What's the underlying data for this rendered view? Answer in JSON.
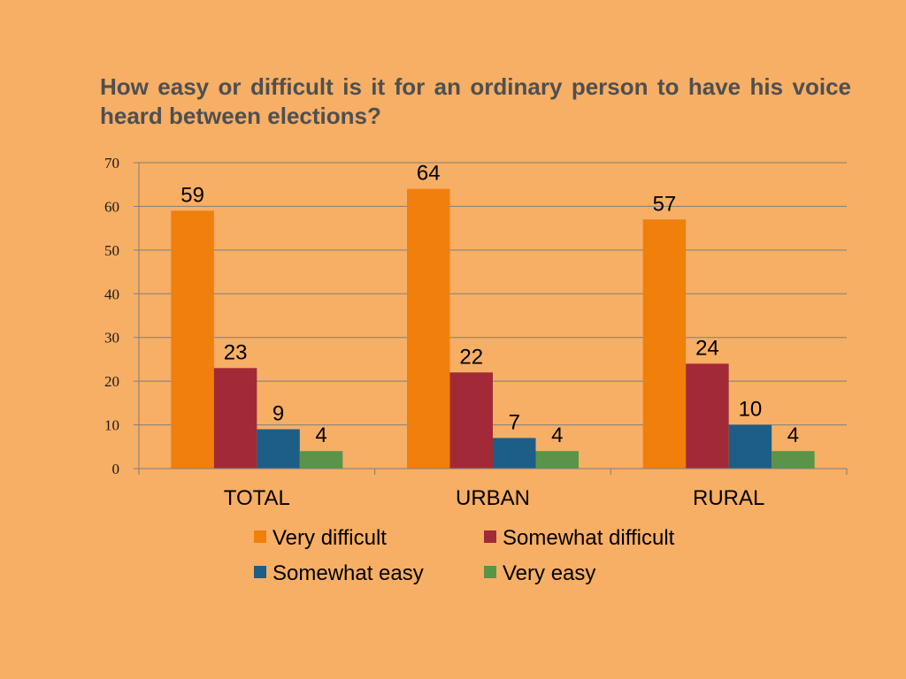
{
  "chart_data": {
    "type": "bar",
    "title": "How easy or difficult is it for an ordinary person to have his voice heard between elections?",
    "categories": [
      "TOTAL",
      "URBAN",
      "RURAL"
    ],
    "series": [
      {
        "name": "Very difficult",
        "color": "#F07F0C",
        "values": [
          59,
          64,
          57
        ]
      },
      {
        "name": "Somewhat difficult",
        "color": "#A22A37",
        "values": [
          23,
          22,
          24
        ]
      },
      {
        "name": "Somewhat easy",
        "color": "#1D5E86",
        "values": [
          9,
          7,
          10
        ]
      },
      {
        "name": "Very easy",
        "color": "#5A9448",
        "values": [
          4,
          4,
          4
        ]
      }
    ],
    "ylim": [
      0,
      70
    ],
    "yticks": [
      0,
      10,
      20,
      30,
      40,
      50,
      60,
      70
    ],
    "xlabel": "",
    "ylabel": "",
    "grid": true,
    "legend": "bottom",
    "data_labels": true
  }
}
